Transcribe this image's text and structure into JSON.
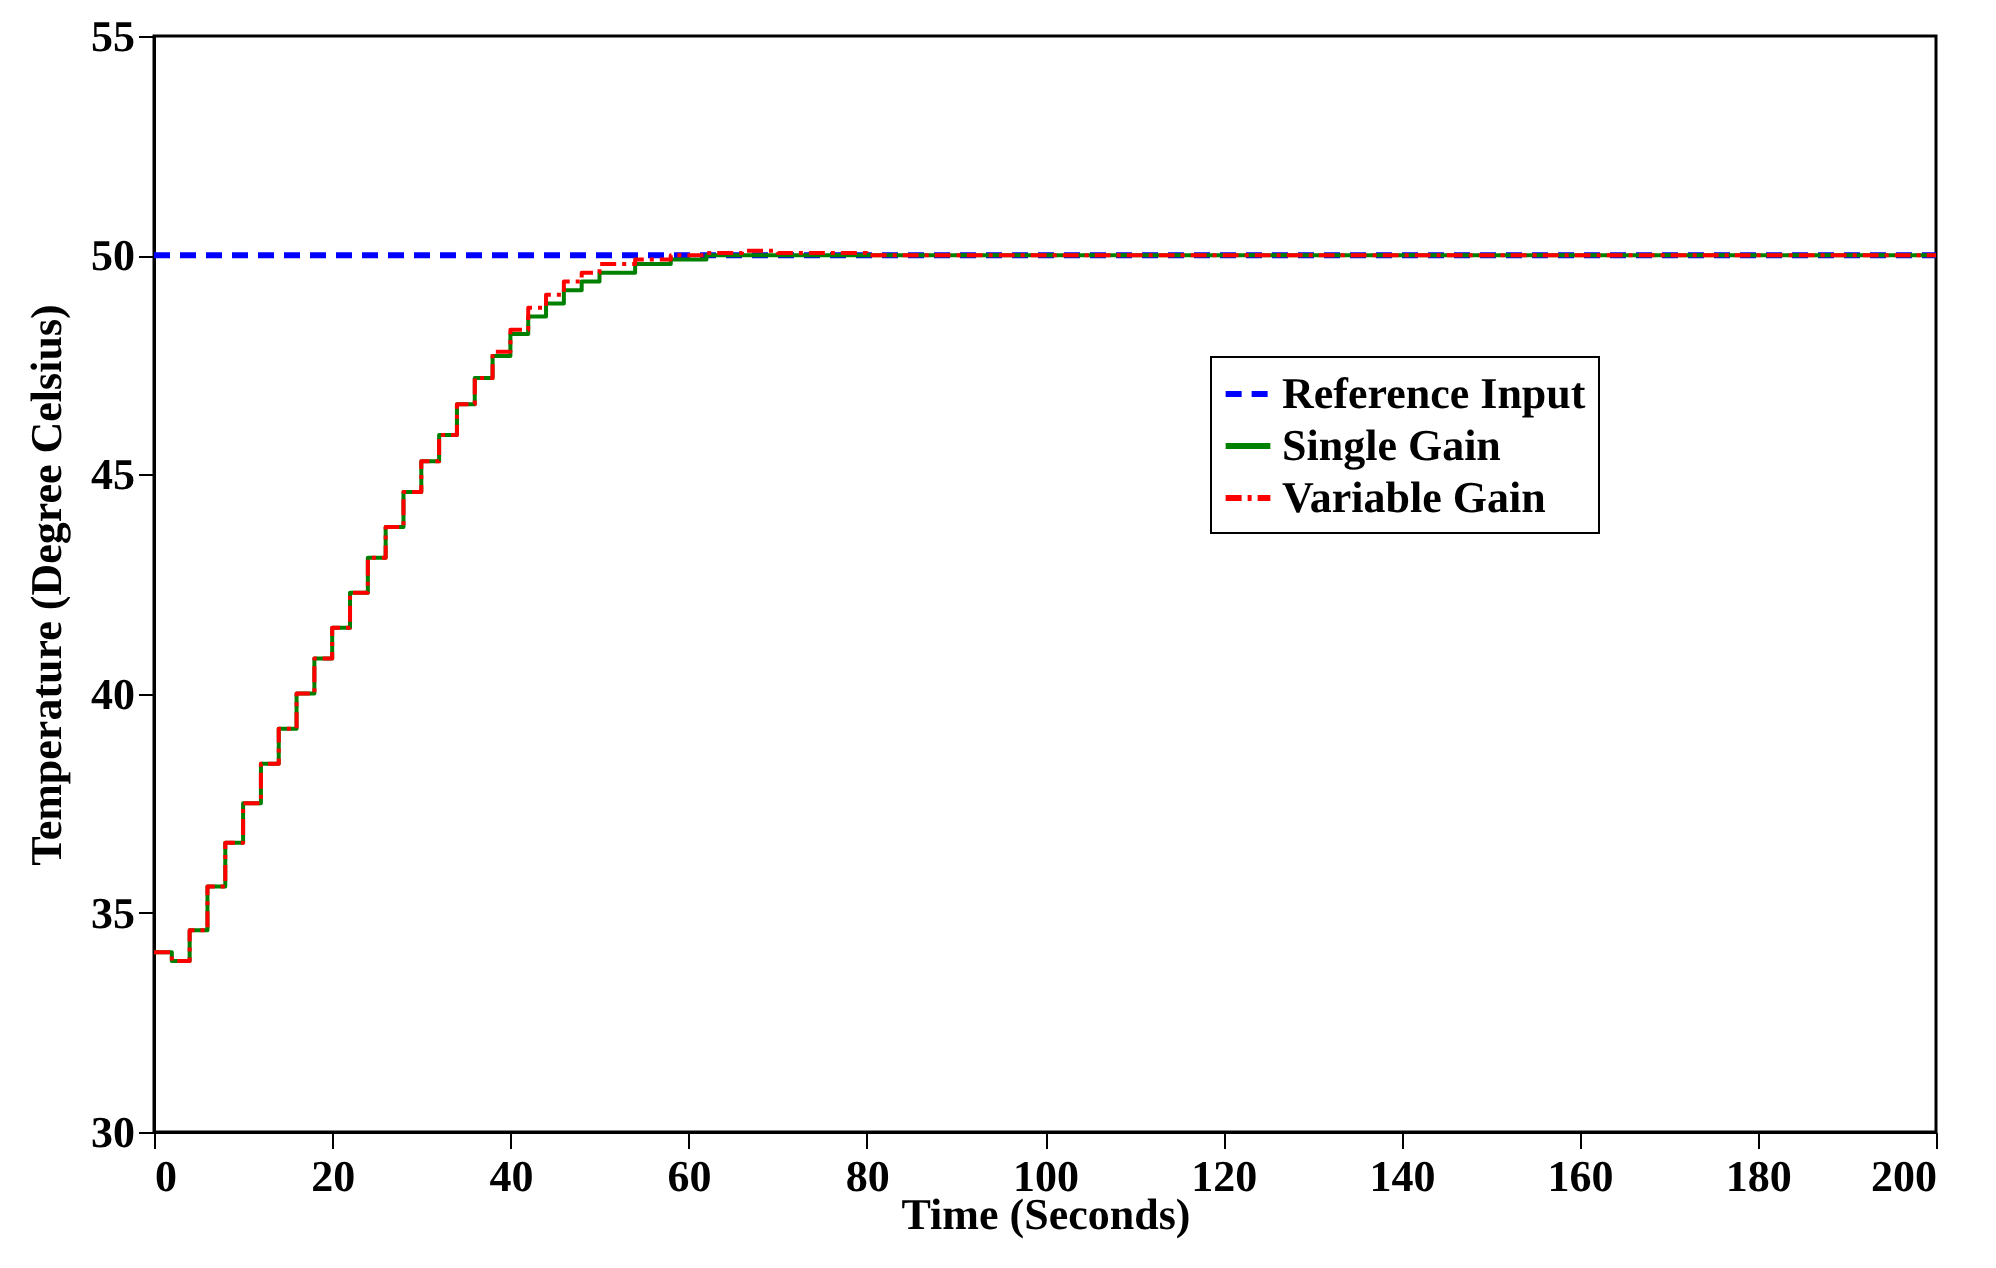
{
  "chart_data": {
    "type": "step",
    "xlabel": "Time (Seconds)",
    "ylabel": "Temperature (Degree Celsius)",
    "xlim": [
      0,
      200
    ],
    "ylim": [
      30,
      55
    ],
    "xticks": [
      0,
      20,
      40,
      60,
      80,
      100,
      120,
      140,
      160,
      180,
      200
    ],
    "yticks": [
      30,
      35,
      40,
      45,
      50,
      55
    ],
    "grid": false,
    "legend": "right",
    "series": [
      {
        "name": "Reference Input",
        "color": "#0000ff",
        "type": "line",
        "line_style": "dashed",
        "x": [
          0,
          200
        ],
        "values": [
          50,
          50
        ]
      },
      {
        "name": "Single Gain",
        "color": "#008000",
        "line_style": "solid",
        "x": [
          0,
          2,
          3,
          4,
          6,
          8,
          10,
          12,
          14,
          16,
          18,
          20,
          22,
          24,
          26,
          28,
          30,
          32,
          34,
          36,
          38,
          40,
          42,
          44,
          46,
          48,
          50,
          54,
          58,
          62,
          70,
          200
        ],
        "values": [
          34.1,
          33.9,
          33.9,
          34.6,
          35.6,
          36.6,
          37.5,
          38.4,
          39.2,
          40.0,
          40.8,
          41.5,
          42.3,
          43.1,
          43.8,
          44.6,
          45.3,
          45.9,
          46.6,
          47.2,
          47.7,
          48.2,
          48.6,
          48.9,
          49.2,
          49.4,
          49.6,
          49.8,
          49.9,
          50.0,
          50.0,
          50.0
        ]
      },
      {
        "name": "Variable Gain",
        "color": "#ff0000",
        "line_style": "dashdot",
        "x": [
          0,
          2,
          3,
          4,
          6,
          8,
          10,
          12,
          14,
          16,
          18,
          20,
          22,
          24,
          26,
          28,
          30,
          32,
          34,
          36,
          38,
          40,
          42,
          44,
          46,
          48,
          50,
          54,
          58,
          62,
          66,
          70,
          80,
          200
        ],
        "values": [
          34.1,
          33.9,
          33.9,
          34.6,
          35.6,
          36.6,
          37.5,
          38.4,
          39.2,
          40.0,
          40.8,
          41.5,
          42.3,
          43.1,
          43.8,
          44.6,
          45.3,
          45.9,
          46.6,
          47.2,
          47.8,
          48.3,
          48.8,
          49.1,
          49.4,
          49.6,
          49.8,
          49.9,
          50.0,
          50.05,
          50.1,
          50.05,
          50.0,
          50.0
        ]
      }
    ]
  }
}
